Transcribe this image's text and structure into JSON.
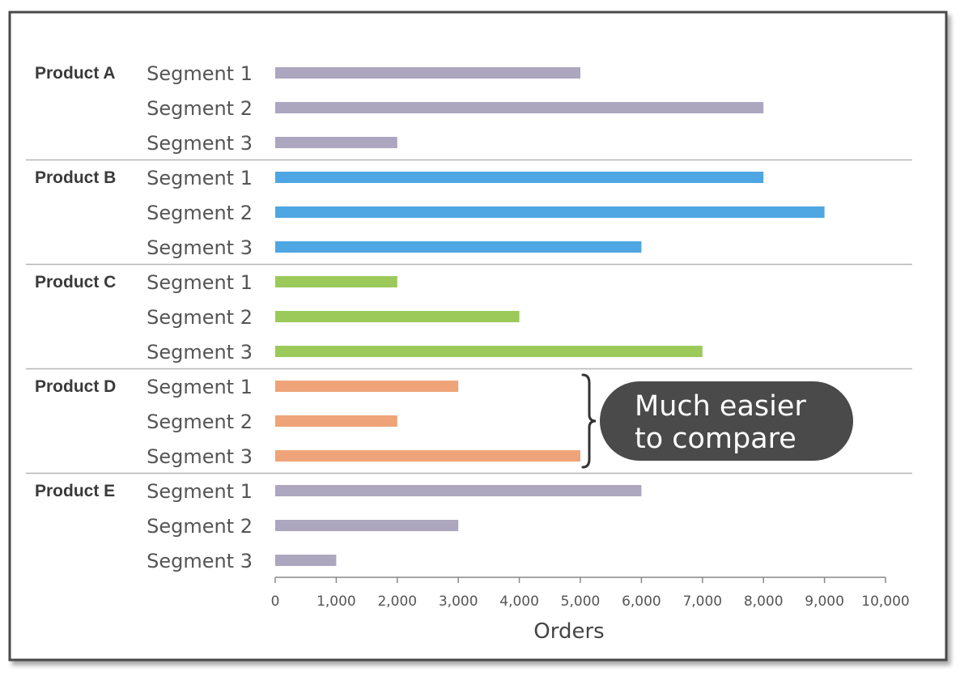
{
  "chart_data": {
    "type": "bar",
    "orientation": "horizontal",
    "xlabel": "Orders",
    "xlim": [
      0,
      10000
    ],
    "xticks": [
      0,
      1000,
      2000,
      3000,
      4000,
      5000,
      6000,
      7000,
      8000,
      9000,
      10000
    ],
    "xtick_labels": [
      "0",
      "1,000",
      "2,000",
      "3,000",
      "4,000",
      "5,000",
      "6,000",
      "7,000",
      "8,000",
      "9,000",
      "10,000"
    ],
    "groups": [
      {
        "name": "Product A",
        "color": "#ada6bf",
        "segments": [
          {
            "label": "Segment 1",
            "value": 5000
          },
          {
            "label": "Segment 2",
            "value": 8000
          },
          {
            "label": "Segment 3",
            "value": 2000
          }
        ]
      },
      {
        "name": "Product B",
        "color": "#4ea6e3",
        "segments": [
          {
            "label": "Segment 1",
            "value": 8000
          },
          {
            "label": "Segment 2",
            "value": 9000
          },
          {
            "label": "Segment 3",
            "value": 6000
          }
        ]
      },
      {
        "name": "Product C",
        "color": "#9bca5a",
        "segments": [
          {
            "label": "Segment 1",
            "value": 2000
          },
          {
            "label": "Segment 2",
            "value": 4000
          },
          {
            "label": "Segment 3",
            "value": 7000
          }
        ]
      },
      {
        "name": "Product D",
        "color": "#eea478",
        "segments": [
          {
            "label": "Segment 1",
            "value": 3000
          },
          {
            "label": "Segment 2",
            "value": 2000
          },
          {
            "label": "Segment 3",
            "value": 5000
          }
        ]
      },
      {
        "name": "Product E",
        "color": "#ada6bf",
        "segments": [
          {
            "label": "Segment 1",
            "value": 6000
          },
          {
            "label": "Segment 2",
            "value": 3000
          },
          {
            "label": "Segment 3",
            "value": 1000
          }
        ]
      }
    ],
    "annotation": {
      "lines": [
        "Much easier",
        "to compare"
      ],
      "target_group": "Product D",
      "background": "#4a4a4a"
    }
  }
}
